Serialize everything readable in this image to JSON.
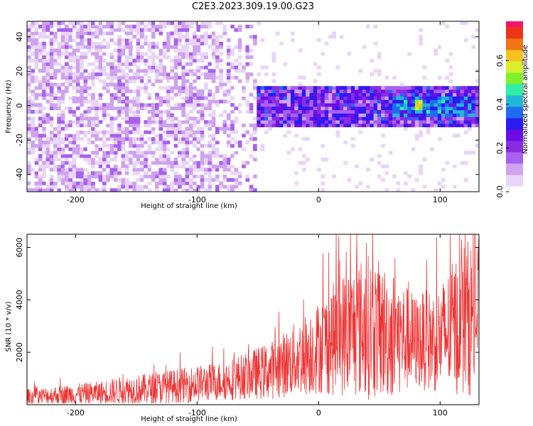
{
  "title": "C2E3.2023.309.19.00.G23",
  "colors": {
    "snr_line": "#ee3333",
    "frame": "#000000",
    "colormap": [
      "#ffffff",
      "#e9d5f7",
      "#cfa3ef",
      "#a861ee",
      "#8a2be2",
      "#6a0de8",
      "#2b1bf0",
      "#1f6cf2",
      "#21b8d8",
      "#2ef0a8",
      "#7ff02c",
      "#d8f02a",
      "#f5c21f",
      "#f27515",
      "#ec3518",
      "#f0186a"
    ]
  },
  "chart_data": [
    {
      "type": "heatmap",
      "title": "",
      "xlabel": "Height of straight line (km)",
      "ylabel": "Frequency (Hz)",
      "xlim": [
        -240,
        132
      ],
      "ylim": [
        -50,
        49
      ],
      "xticks": [
        -200,
        -100,
        0,
        100
      ],
      "xtick_labels": [
        "-200",
        "-100",
        "0",
        "100"
      ],
      "yticks": [
        -40,
        -20,
        0,
        20,
        40
      ],
      "ytick_labels": [
        "-40",
        "-20",
        "0",
        "20",
        "40"
      ],
      "colorbar": {
        "label": "Normalized spectral amplitude",
        "range": [
          0,
          0.78
        ],
        "ticks": [
          0.0,
          0.2,
          0.4,
          0.6
        ],
        "tick_labels": [
          "0.0",
          "0.2",
          "0.4",
          "0.6"
        ]
      },
      "regions": [
        {
          "x_range": [
            -240,
            -50
          ],
          "frequency_band": [
            -50,
            49
          ],
          "amplitude_range": [
            0.0,
            0.15
          ],
          "description": "broadband noise"
        },
        {
          "x_range": [
            -50,
            132
          ],
          "frequency_band": [
            -12,
            12
          ],
          "amplitude_range": [
            0.1,
            0.35
          ]
        },
        {
          "x_range": [
            60,
            130
          ],
          "frequency_band": [
            -6,
            6
          ],
          "amplitude_range": [
            0.25,
            0.45
          ]
        },
        {
          "x_range": [
            78,
            86
          ],
          "frequency_band": [
            -3,
            3
          ],
          "amplitude_range": [
            0.5,
            0.7
          ]
        }
      ]
    },
    {
      "type": "line",
      "title": "",
      "xlabel": "Height of straight line (km)",
      "ylabel": "SNR (10 * v/v)",
      "xlim": [
        -240,
        132
      ],
      "ylim": [
        0,
        6500
      ],
      "xticks": [
        -200,
        -100,
        0,
        100
      ],
      "xtick_labels": [
        "-200",
        "-100",
        "0",
        "100"
      ],
      "yticks": [
        2000,
        4000,
        6000
      ],
      "ytick_labels": [
        "2000",
        "4000",
        "6000"
      ],
      "series": [
        {
          "x": [
            -240,
            -220,
            -200,
            -180,
            -160,
            -140,
            -120,
            -100,
            -80,
            -60,
            -40,
            -20,
            0,
            20,
            40,
            60,
            80,
            100,
            120,
            132
          ],
          "values": [
            300,
            350,
            400,
            450,
            550,
            600,
            700,
            800,
            900,
            1100,
            1300,
            1700,
            2200,
            2700,
            3000,
            2700,
            2400,
            2500,
            3300,
            3400
          ],
          "noise_band": [
            300,
            350,
            400,
            450,
            550,
            600,
            650,
            700,
            750,
            900,
            1100,
            1400,
            1800,
            2400,
            2800,
            2500,
            1800,
            2100,
            3000,
            3000
          ],
          "peak": 6500
        }
      ]
    }
  ]
}
